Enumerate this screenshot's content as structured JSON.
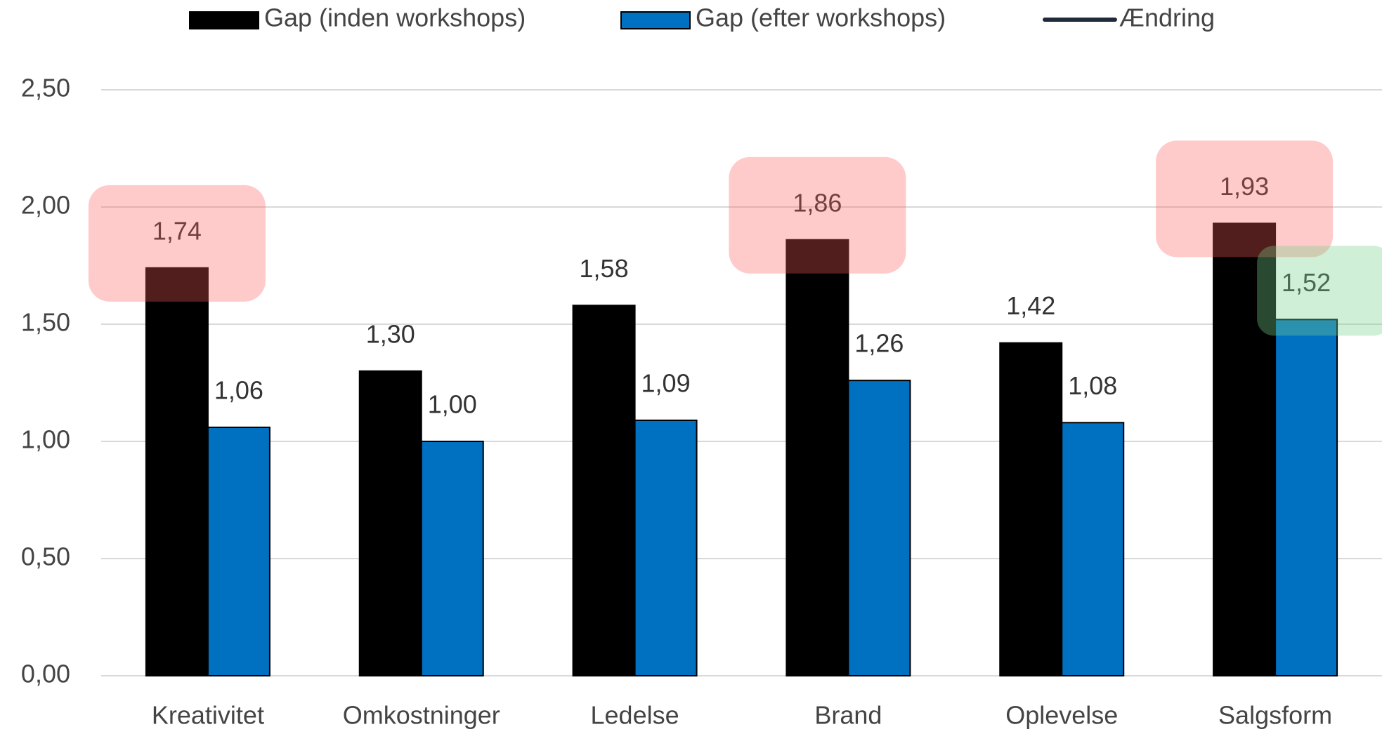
{
  "chart_data": {
    "type": "bar",
    "categories": [
      "Kreativitet",
      "Omkostninger",
      "Ledelse",
      "Brand",
      "Oplevelse",
      "Salgsform"
    ],
    "series": [
      {
        "name": "Gap (inden workshops)",
        "color": "#000000",
        "values": [
          1.74,
          1.3,
          1.58,
          1.86,
          1.42,
          1.93
        ],
        "value_labels": [
          "1,74",
          "1,30",
          "1,58",
          "1,86",
          "1,42",
          "1,93"
        ]
      },
      {
        "name": "Gap (efter workshops)",
        "color": "#0070c0",
        "values": [
          1.06,
          1.0,
          1.09,
          1.26,
          1.08,
          1.52
        ],
        "value_labels": [
          "1,06",
          "1,00",
          "1,09",
          "1,26",
          "1,08",
          "1,52"
        ]
      },
      {
        "name": "Ændring",
        "color": "#1f2a3a",
        "type": "line",
        "values": [
          null,
          null,
          null,
          null,
          null,
          null
        ]
      }
    ],
    "ylim": [
      0,
      2.5
    ],
    "yticks": [
      {
        "value": 0,
        "label": "0,00"
      },
      {
        "value": 0.5,
        "label": "0,50"
      },
      {
        "value": 1,
        "label": "1,00"
      },
      {
        "value": 1.5,
        "label": "1,50"
      },
      {
        "value": 2,
        "label": "2,00"
      },
      {
        "value": 2.5,
        "label": "2,50"
      }
    ],
    "grid": true,
    "legend": "top"
  }
}
